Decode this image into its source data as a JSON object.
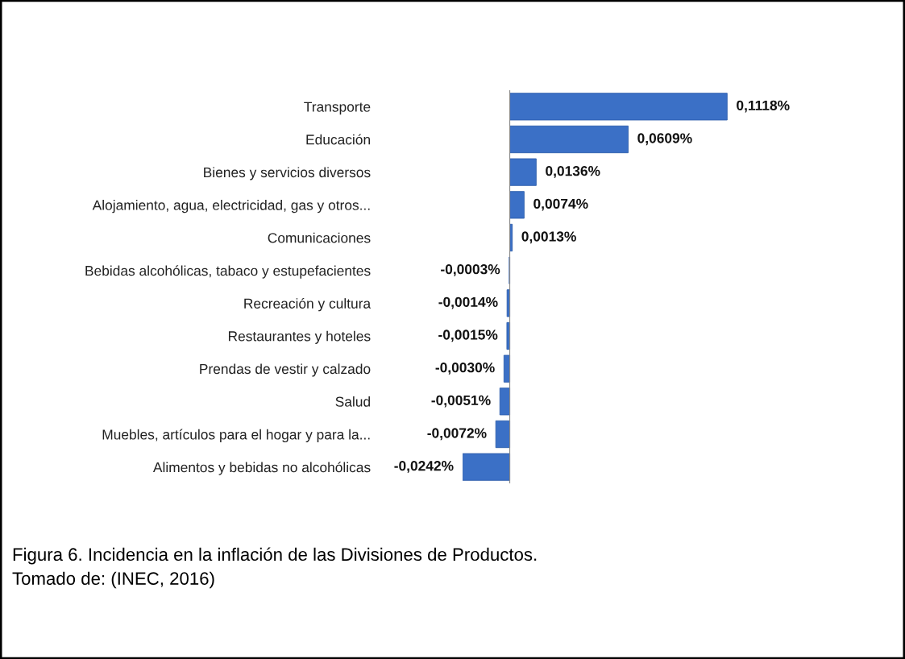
{
  "chart_data": {
    "type": "bar",
    "orientation": "horizontal",
    "categories": [
      "Transporte",
      "Educación",
      "Bienes y servicios diversos",
      "Alojamiento, agua, electricidad, gas y otros...",
      "Comunicaciones",
      "Bebidas alcohólicas, tabaco y estupefacientes",
      "Recreación y cultura",
      "Restaurantes y hoteles",
      "Prendas de vestir y calzado",
      "Salud",
      "Muebles, artículos para el hogar y para la...",
      "Alimentos y bebidas no alcohólicas"
    ],
    "values": [
      0.1118,
      0.0609,
      0.0136,
      0.0074,
      0.0013,
      -0.0003,
      -0.0014,
      -0.0015,
      -0.003,
      -0.0051,
      -0.0072,
      -0.0242
    ],
    "value_labels": [
      "0,1118%",
      "0,0609%",
      "0,0136%",
      "0,0074%",
      "0,0013%",
      "-0,0003%",
      "-0,0014%",
      "-0,0015%",
      "-0,0030%",
      "-0,0051%",
      "-0,0072%",
      "-0,0242%"
    ],
    "color": "#3b70c6",
    "grid": false,
    "legend": false,
    "annotations": [
      "Figura 6. Incidencia en la inflación de las Divisiones de Productos.",
      "Tomado de: (INEC, 2016)"
    ]
  }
}
